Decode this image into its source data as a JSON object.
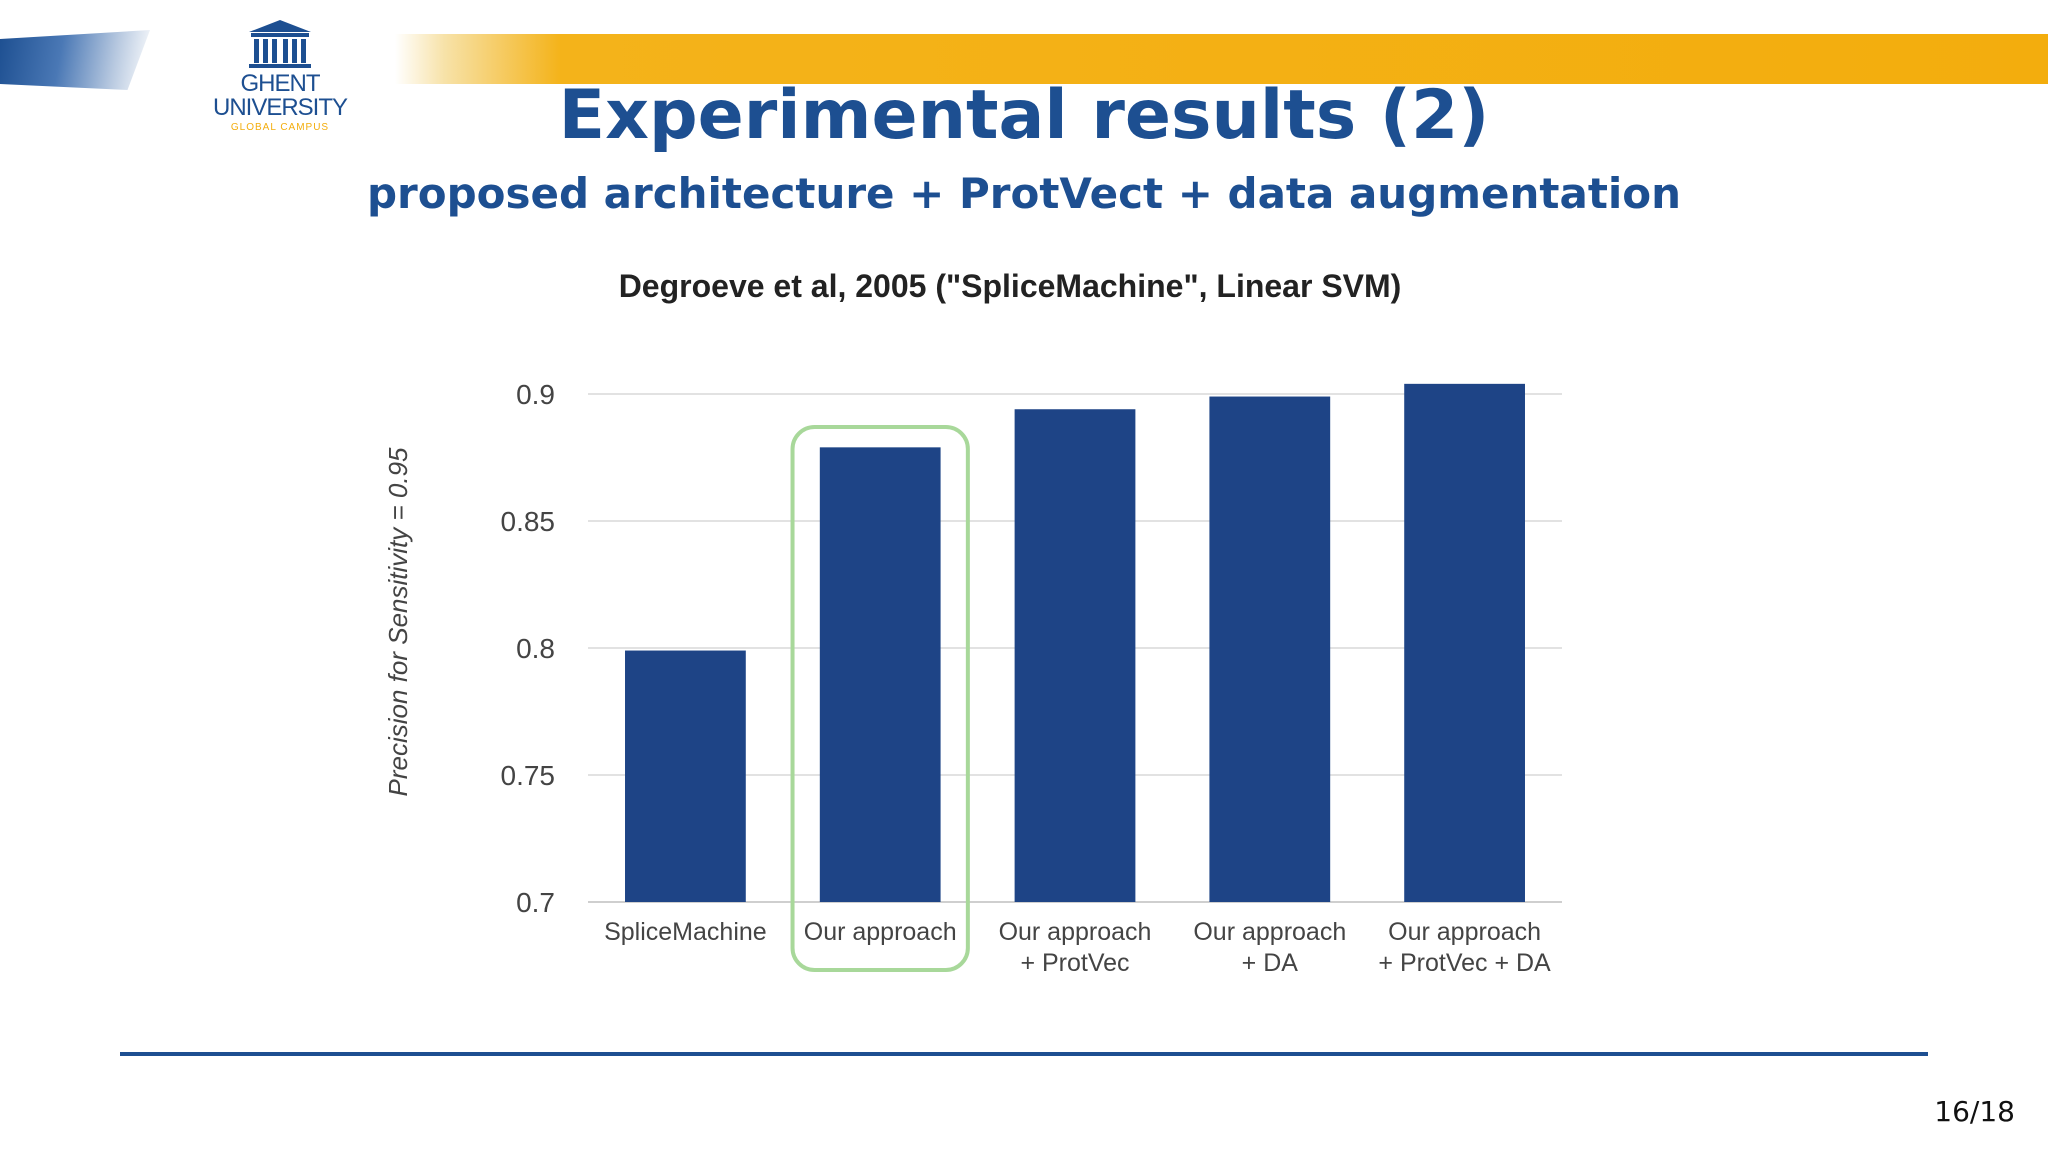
{
  "slide": {
    "title": "Experimental results (2)",
    "subtitle": "proposed architecture + ProtVect + data augmentation",
    "page_number": "16/18",
    "logo": {
      "line1": "GHENT",
      "line2": "UNIVERSITY",
      "line3": "GLOBAL CAMPUS"
    }
  },
  "colors": {
    "brand_blue": "#1d4f91",
    "bar": "#1e4486",
    "highlight": "#a8d89a",
    "banner_orange": "#f3ad0d",
    "gridline": "#d9d9d9"
  },
  "chart_data": {
    "type": "bar",
    "title": "Degroeve et al, 2005 (\"SpliceMachine\", Linear SVM)",
    "ylabel": "Precision for Sensitivity = 0.95",
    "xlabel": "",
    "categories": [
      [
        "SpliceMachine"
      ],
      [
        "Our approach"
      ],
      [
        "Our approach",
        "+ ProtVec"
      ],
      [
        "Our approach",
        "+ DA"
      ],
      [
        "Our approach",
        "+ ProtVec + DA"
      ]
    ],
    "values": [
      0.799,
      0.879,
      0.894,
      0.899,
      0.904
    ],
    "ylim": [
      0.7,
      0.9
    ],
    "yticks": [
      "0.7",
      "0.75",
      "0.8",
      "0.85",
      "0.9"
    ],
    "grid": true,
    "highlighted_category": "Our approach"
  }
}
